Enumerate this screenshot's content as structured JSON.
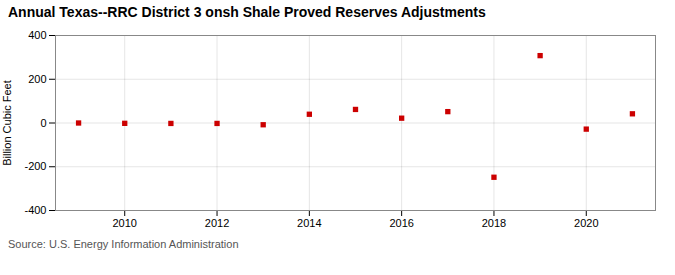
{
  "chart_data": {
    "type": "scatter",
    "title": "Annual Texas--RRC District 3 onsh Shale Proved Reserves Adjustments",
    "ylabel": "Billion Cubic Feet",
    "source": "Source: U.S. Energy Information Administration",
    "x": [
      2009,
      2010,
      2011,
      2012,
      2013,
      2014,
      2015,
      2016,
      2017,
      2018,
      2019,
      2020,
      2021
    ],
    "values": [
      0.0,
      -1.5,
      -2.0,
      -2.0,
      -8.0,
      40.0,
      62.0,
      22.0,
      52.0,
      -248.0,
      308.0,
      -28.0,
      42.0
    ],
    "color": "#cc0000",
    "marker": "square",
    "xlim": [
      2008.5,
      2021.5
    ],
    "xticks": [
      2010,
      2012,
      2014,
      2016,
      2018,
      2020
    ],
    "ylim": [
      -400,
      400
    ],
    "yticks": [
      -400,
      -200,
      0,
      200,
      400
    ],
    "grid": true
  }
}
